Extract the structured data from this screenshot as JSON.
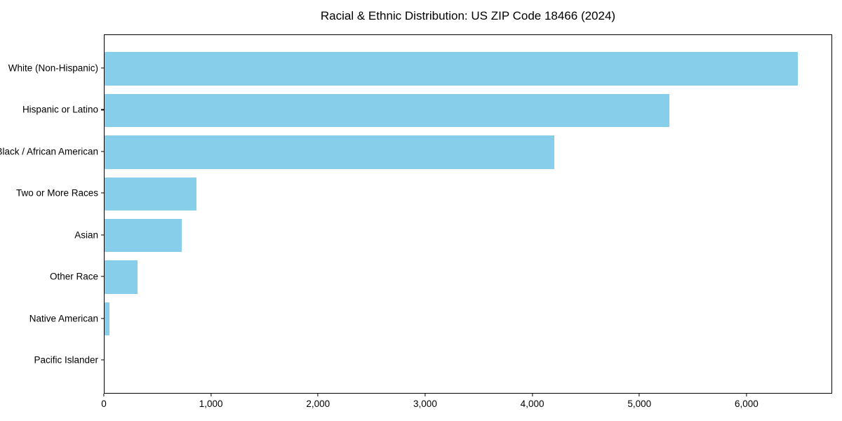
{
  "title": "Racial & Ethnic Distribution: US ZIP Code 18466 (2024)",
  "colors": {
    "bar": "#87CEEB",
    "frame": "#000000",
    "text": "#000000",
    "background": "#FFFFFF"
  },
  "chart_data": {
    "type": "bar",
    "orientation": "horizontal",
    "title": "Racial & Ethnic Distribution: US ZIP Code 18466 (2024)",
    "categories": [
      "White (Non-Hispanic)",
      "Hispanic or Latino",
      "Black / African American",
      "Two or More Races",
      "Asian",
      "Other Race",
      "Native American",
      "Pacific Islander"
    ],
    "values": [
      6470,
      5270,
      4200,
      860,
      720,
      310,
      45,
      0
    ],
    "xlabel": "",
    "ylabel": "",
    "xlim": [
      0,
      6800
    ],
    "x_ticks": [
      0,
      1000,
      2000,
      3000,
      4000,
      5000,
      6000
    ],
    "x_tick_labels": [
      "0",
      "1,000",
      "2,000",
      "3,000",
      "4,000",
      "5,000",
      "6,000"
    ],
    "bar_color": "#87CEEB",
    "grid": false,
    "legend": null,
    "value_labels_shown": false
  }
}
